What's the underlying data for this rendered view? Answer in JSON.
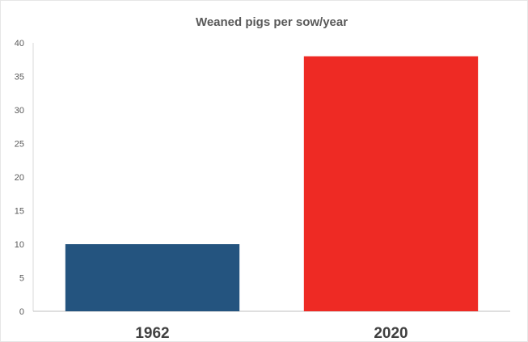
{
  "chart_data": {
    "type": "bar",
    "title": "Weaned pigs per sow/year",
    "xlabel": "",
    "ylabel": "",
    "categories": [
      "1962",
      "2020"
    ],
    "values": [
      10,
      38
    ],
    "bar_colors": [
      "#24547f",
      "#ee2a24"
    ],
    "ylim": [
      0,
      40
    ],
    "y_ticks": [
      "0",
      "5",
      "10",
      "15",
      "20",
      "25",
      "30",
      "35",
      "40"
    ],
    "grid": false,
    "legend": "none"
  }
}
